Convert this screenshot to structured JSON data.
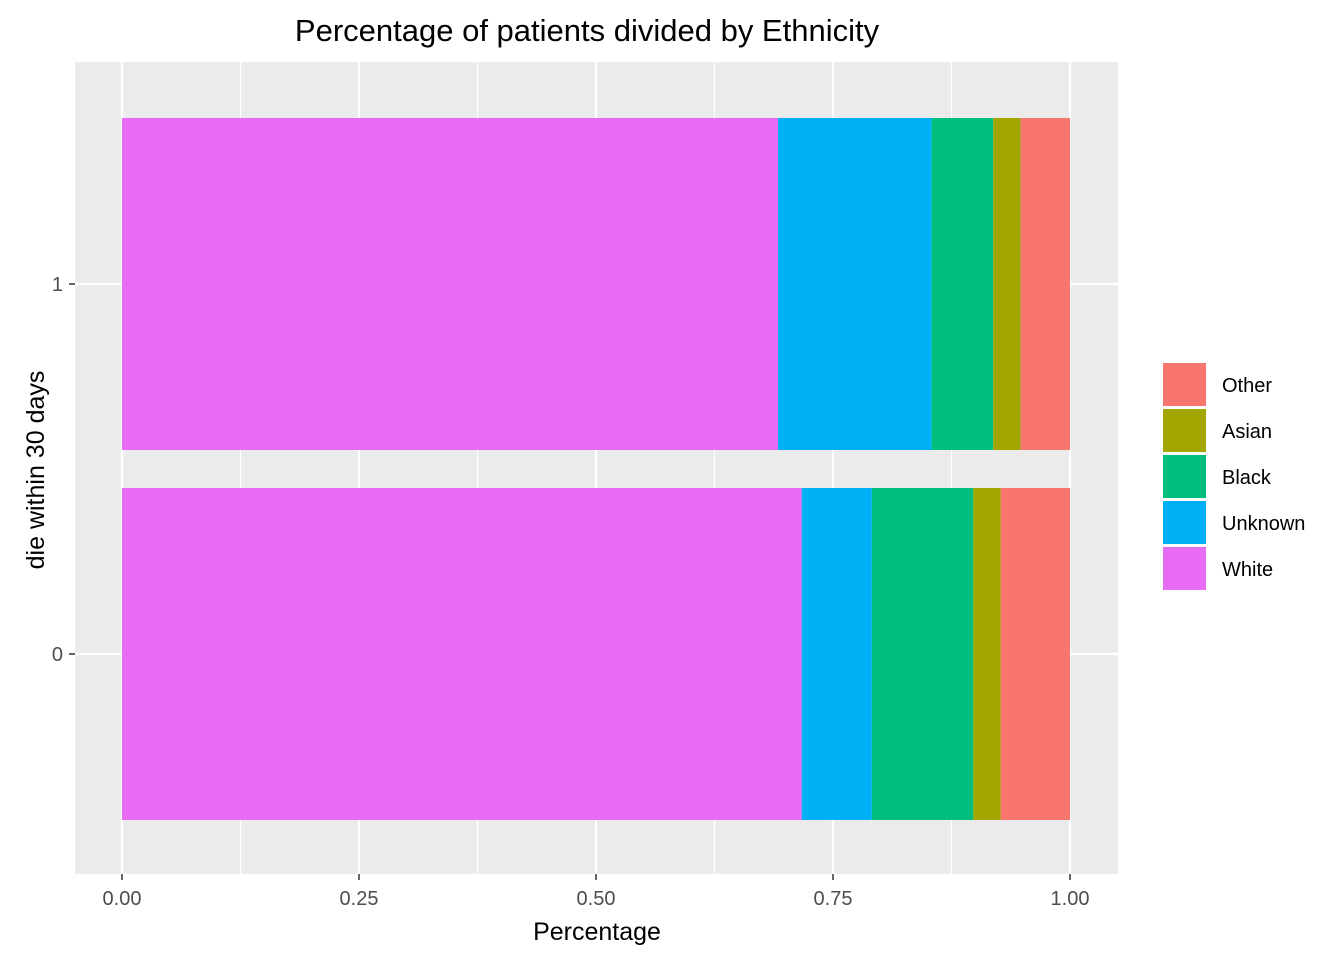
{
  "chart_data": {
    "type": "bar",
    "orientation": "horizontal",
    "stacked": true,
    "title": "Percentage of patients divided by Ethnicity",
    "xlabel": "Percentage",
    "ylabel": "die within 30 days",
    "xlim": [
      0,
      1
    ],
    "x_ticks": [
      "0.00",
      "0.25",
      "0.50",
      "0.75",
      "1.00"
    ],
    "categories": [
      "1",
      "0"
    ],
    "series": [
      {
        "name": "White",
        "color": "#E76BF3",
        "values": [
          0.692,
          0.717
        ]
      },
      {
        "name": "Unknown",
        "color": "#00B0F6",
        "values": [
          0.162,
          0.074
        ]
      },
      {
        "name": "Black",
        "color": "#00BF7D",
        "values": [
          0.065,
          0.107
        ]
      },
      {
        "name": "Asian",
        "color": "#A3A500",
        "values": [
          0.029,
          0.029
        ]
      },
      {
        "name": "Other",
        "color": "#F8766D",
        "values": [
          0.052,
          0.073
        ]
      }
    ],
    "legend_order": [
      "Other",
      "Asian",
      "Black",
      "Unknown",
      "White"
    ],
    "legend_position": "right",
    "grid": true,
    "panel_background": "#EBEBEB"
  }
}
